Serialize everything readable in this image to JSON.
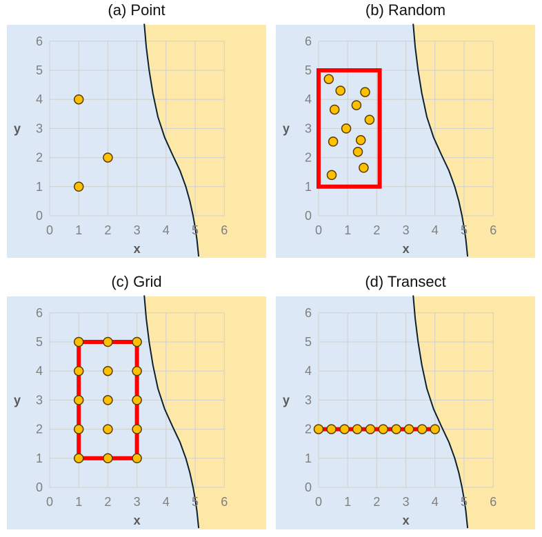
{
  "colors": {
    "left_region": "#dce8f5",
    "right_region": "#fee8a8",
    "grid": "#cfcfcf",
    "boundary": "#0b2030",
    "point_fill": "#ffc000",
    "point_stroke": "#5a3a00",
    "frame": "#ff0000",
    "tick_text": "#7f7f7f"
  },
  "boundary_curve": {
    "x": [
      3.25,
      3.32,
      3.42,
      3.55,
      3.72,
      3.95,
      4.22,
      4.48,
      4.68,
      4.82,
      4.93,
      5.0,
      5.06,
      5.12
    ],
    "y": [
      6.6,
      5.8,
      5.0,
      4.2,
      3.4,
      2.7,
      2.1,
      1.55,
      1.0,
      0.5,
      0.0,
      -0.4,
      -0.8,
      -1.4
    ]
  },
  "chart_data": [
    {
      "type": "scatter",
      "title": "(a) Point",
      "xlabel": "x",
      "ylabel": "y",
      "xlim": [
        0,
        6
      ],
      "ylim": [
        0,
        6
      ],
      "x_ticks": [
        "0",
        "1",
        "2",
        "3",
        "4",
        "5",
        "6"
      ],
      "y_ticks": [
        "0",
        "1",
        "2",
        "3",
        "4",
        "5",
        "6"
      ],
      "grid": true,
      "points": [
        [
          1,
          4
        ],
        [
          2,
          2
        ],
        [
          1,
          1
        ]
      ]
    },
    {
      "type": "scatter",
      "title": "(b) Random",
      "xlabel": "x",
      "ylabel": "y",
      "xlim": [
        0,
        6
      ],
      "ylim": [
        0,
        6
      ],
      "x_ticks": [
        "0",
        "1",
        "2",
        "3",
        "4",
        "5",
        "6"
      ],
      "y_ticks": [
        "0",
        "1",
        "2",
        "3",
        "4",
        "5",
        "6"
      ],
      "grid": true,
      "frame": [
        [
          0,
          1
        ],
        [
          2.1,
          1
        ],
        [
          2.1,
          5
        ],
        [
          0,
          5
        ]
      ],
      "points": [
        [
          0.35,
          4.7
        ],
        [
          0.75,
          4.3
        ],
        [
          1.6,
          4.25
        ],
        [
          0.55,
          3.65
        ],
        [
          1.3,
          3.8
        ],
        [
          1.75,
          3.3
        ],
        [
          0.95,
          3.0
        ],
        [
          0.5,
          2.55
        ],
        [
          1.45,
          2.6
        ],
        [
          1.35,
          2.2
        ],
        [
          1.55,
          1.65
        ],
        [
          0.45,
          1.4
        ]
      ]
    },
    {
      "type": "scatter",
      "title": "(c) Grid",
      "xlabel": "x",
      "ylabel": "y",
      "xlim": [
        0,
        6
      ],
      "ylim": [
        0,
        6
      ],
      "x_ticks": [
        "0",
        "1",
        "2",
        "3",
        "4",
        "5",
        "6"
      ],
      "y_ticks": [
        "0",
        "1",
        "2",
        "3",
        "4",
        "5",
        "6"
      ],
      "grid": true,
      "frame": [
        [
          1,
          1
        ],
        [
          3,
          1
        ],
        [
          3,
          5
        ],
        [
          1,
          5
        ]
      ],
      "points": [
        [
          1,
          5
        ],
        [
          2,
          5
        ],
        [
          3,
          5
        ],
        [
          1,
          4
        ],
        [
          2,
          4
        ],
        [
          3,
          4
        ],
        [
          1,
          3
        ],
        [
          2,
          3
        ],
        [
          3,
          3
        ],
        [
          1,
          2
        ],
        [
          2,
          2
        ],
        [
          3,
          2
        ],
        [
          1,
          1
        ],
        [
          2,
          1
        ],
        [
          3,
          1
        ]
      ]
    },
    {
      "type": "scatter",
      "title": "(d) Transect",
      "xlabel": "x",
      "ylabel": "y",
      "xlim": [
        0,
        6
      ],
      "ylim": [
        0,
        6
      ],
      "x_ticks": [
        "0",
        "1",
        "2",
        "3",
        "4",
        "5",
        "6"
      ],
      "y_ticks": [
        "0",
        "1",
        "2",
        "3",
        "4",
        "5",
        "6"
      ],
      "grid": true,
      "line": [
        [
          0,
          2
        ],
        [
          4,
          2
        ]
      ],
      "points": [
        [
          0,
          2
        ],
        [
          0.44,
          2
        ],
        [
          0.89,
          2
        ],
        [
          1.33,
          2
        ],
        [
          1.78,
          2
        ],
        [
          2.22,
          2
        ],
        [
          2.67,
          2
        ],
        [
          3.11,
          2
        ],
        [
          3.56,
          2
        ],
        [
          4,
          2
        ]
      ]
    }
  ]
}
